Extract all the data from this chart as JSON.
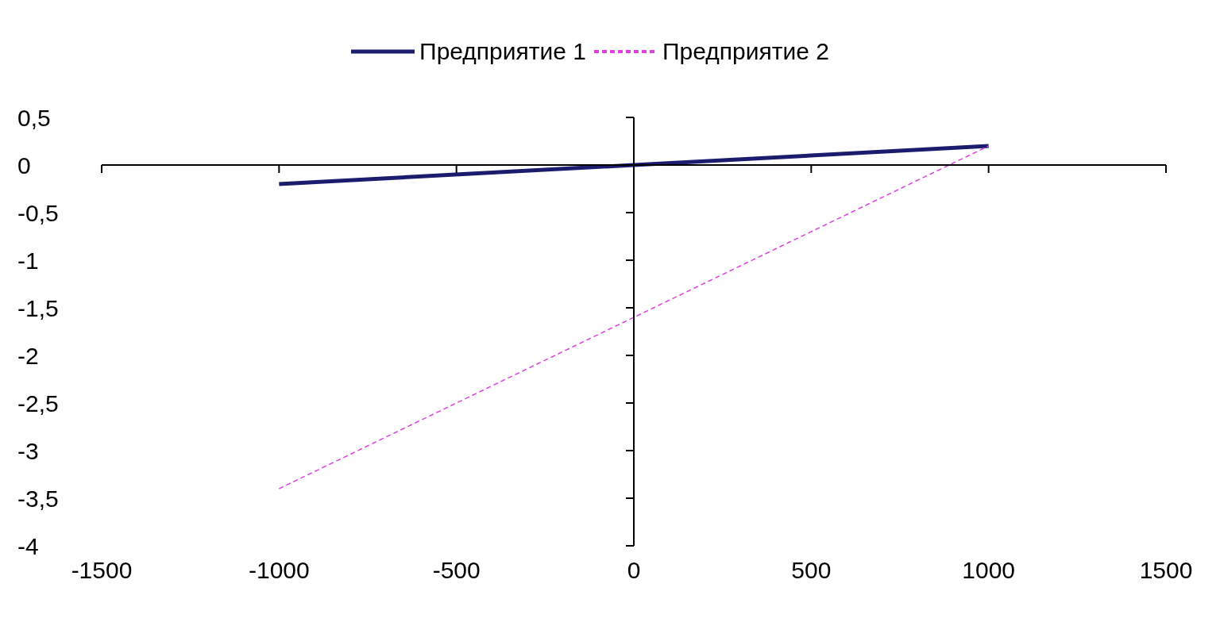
{
  "chart_data": {
    "type": "line",
    "x": [
      -1000,
      0,
      1000
    ],
    "series": [
      {
        "name": "Предприятие 1",
        "color": "#1c1c6e",
        "values": [
          -0.2,
          0,
          0.2
        ],
        "line_style": "solid"
      },
      {
        "name": "Предприятие 2",
        "color": "#e040e0",
        "values": [
          -3.4,
          -1.6,
          0.2
        ],
        "line_style": "dashed"
      }
    ],
    "xlim": [
      -1500,
      1500
    ],
    "xticks": [
      -1500,
      -1000,
      -500,
      0,
      500,
      1000,
      1500
    ],
    "ylim": [
      -4,
      0.5
    ],
    "yticks": [
      {
        "value": 0.5,
        "label": "0,5"
      },
      0,
      {
        "value": -0.5,
        "label": "-0,5"
      },
      -1,
      {
        "value": -1.5,
        "label": "-1,5"
      },
      -2,
      {
        "value": -2.5,
        "label": "-2,5"
      },
      -3,
      {
        "value": -3.5,
        "label": "-3,5"
      },
      -4
    ],
    "legend": "top",
    "marker": "none"
  }
}
